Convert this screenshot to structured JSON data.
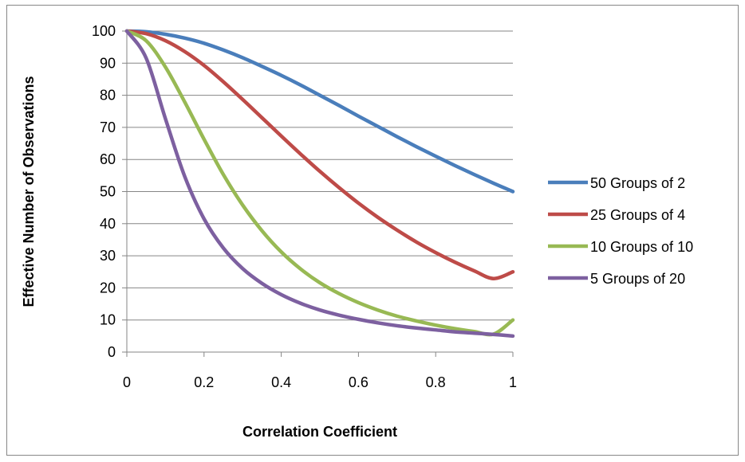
{
  "chart_data": {
    "type": "line",
    "xlabel": "Correlation Coefficient",
    "ylabel": "Effective Number of Observations",
    "xlim": [
      0,
      1
    ],
    "ylim": [
      0,
      100
    ],
    "x_ticks": [
      "0",
      "0.2",
      "0.4",
      "0.6",
      "0.8",
      "1"
    ],
    "y_ticks": [
      "0",
      "10",
      "20",
      "30",
      "40",
      "50",
      "60",
      "70",
      "80",
      "90",
      "100"
    ],
    "grid": "horizontal",
    "legend_position": "right",
    "x": [
      0,
      0.05,
      0.1,
      0.15,
      0.2,
      0.25,
      0.3,
      0.35,
      0.4,
      0.45,
      0.5,
      0.55,
      0.6,
      0.65,
      0.7,
      0.75,
      0.8,
      0.85,
      0.9,
      0.95,
      1
    ],
    "series": [
      {
        "name": "50 Groups of 2",
        "color": "#4a7ebb",
        "values": [
          100,
          99.8,
          99.0,
          97.8,
          96.2,
          94.1,
          91.7,
          89.0,
          86.2,
          83.2,
          80.0,
          76.8,
          73.5,
          70.3,
          67.1,
          64.0,
          61.0,
          58.1,
          55.3,
          52.6,
          50.0
        ]
      },
      {
        "name": "25 Groups of 4",
        "color": "#be4b48",
        "values": [
          100,
          99.2,
          97.0,
          93.6,
          89.3,
          84.2,
          78.7,
          73.0,
          67.3,
          61.7,
          56.3,
          51.2,
          46.4,
          42.0,
          38.0,
          34.3,
          31.0,
          28.0,
          25.3,
          22.9,
          25.0
        ]
      },
      {
        "name": "10 Groups of 10",
        "color": "#98b954",
        "values": [
          100,
          97.0,
          88.8,
          77.9,
          66.3,
          55.3,
          45.8,
          37.8,
          31.2,
          25.9,
          21.6,
          18.2,
          15.4,
          13.1,
          11.2,
          9.7,
          8.4,
          7.3,
          6.4,
          5.6,
          10.0
        ]
      },
      {
        "name": "5 Groups of 20",
        "color": "#7d60a0",
        "values": [
          100,
          91.6,
          72.7,
          54.7,
          41.5,
          32.4,
          26.0,
          21.4,
          17.9,
          15.2,
          13.1,
          11.5,
          10.2,
          9.1,
          8.2,
          7.5,
          6.9,
          6.3,
          5.9,
          5.5,
          5.0
        ]
      }
    ]
  }
}
